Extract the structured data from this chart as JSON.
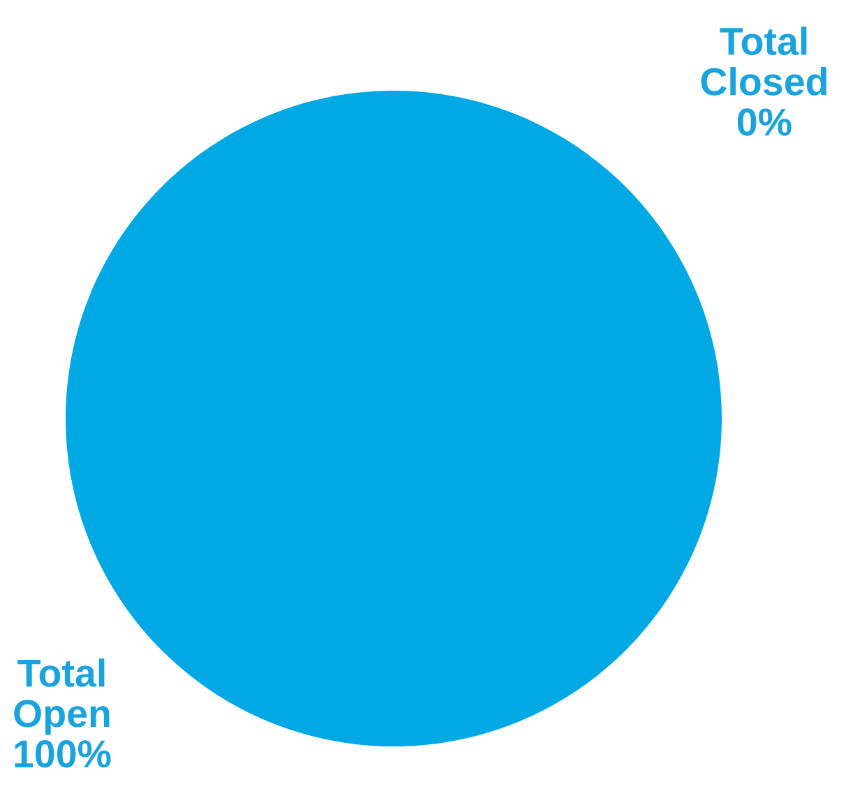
{
  "chart_data": {
    "type": "pie",
    "categories": [
      "Total Open",
      "Total Closed"
    ],
    "values": [
      100,
      0
    ],
    "colors": [
      "#00a8e4",
      "#00a8e4"
    ],
    "value_labels": [
      "100%",
      "0%"
    ],
    "legend": false
  }
}
